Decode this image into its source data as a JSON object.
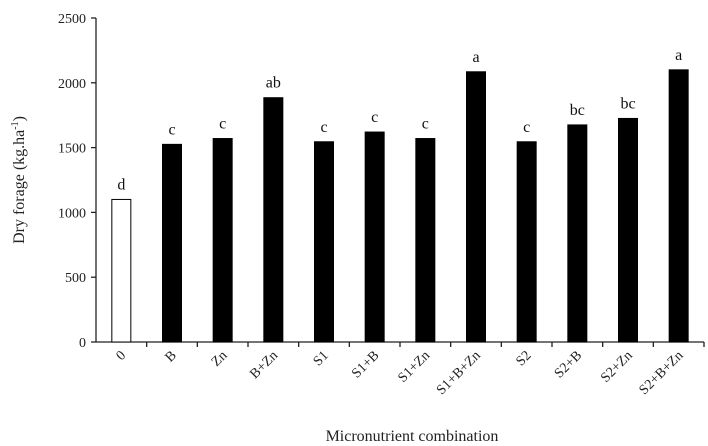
{
  "chart_data": {
    "type": "bar",
    "xlabel": "Micronutrient combination",
    "ylabel_main": "Dry forage (kg.ha",
    "ylabel_sup": "-1",
    "ylabel_close": ")",
    "ylim": [
      0,
      2500
    ],
    "yticks": [
      0,
      500,
      1000,
      1500,
      2000,
      2500
    ],
    "grid": false,
    "categories": [
      "0",
      "B",
      "Zn",
      "B+Zn",
      "S1",
      "S1+B",
      "S1+Zn",
      "S1+B+Zn",
      "S2",
      "S2+B",
      "S2+Zn",
      "S2+B+Zn"
    ],
    "values": [
      1100,
      1525,
      1570,
      1885,
      1545,
      1620,
      1570,
      2085,
      1545,
      1675,
      1725,
      2100
    ],
    "letters": [
      "d",
      "c",
      "c",
      "ab",
      "c",
      "c",
      "c",
      "a",
      "c",
      "bc",
      "bc",
      "a"
    ],
    "bar_fills": [
      "#ffffff",
      "#000000",
      "#000000",
      "#000000",
      "#000000",
      "#000000",
      "#000000",
      "#000000",
      "#000000",
      "#000000",
      "#000000",
      "#000000"
    ],
    "bar_stroke": "#000000"
  }
}
